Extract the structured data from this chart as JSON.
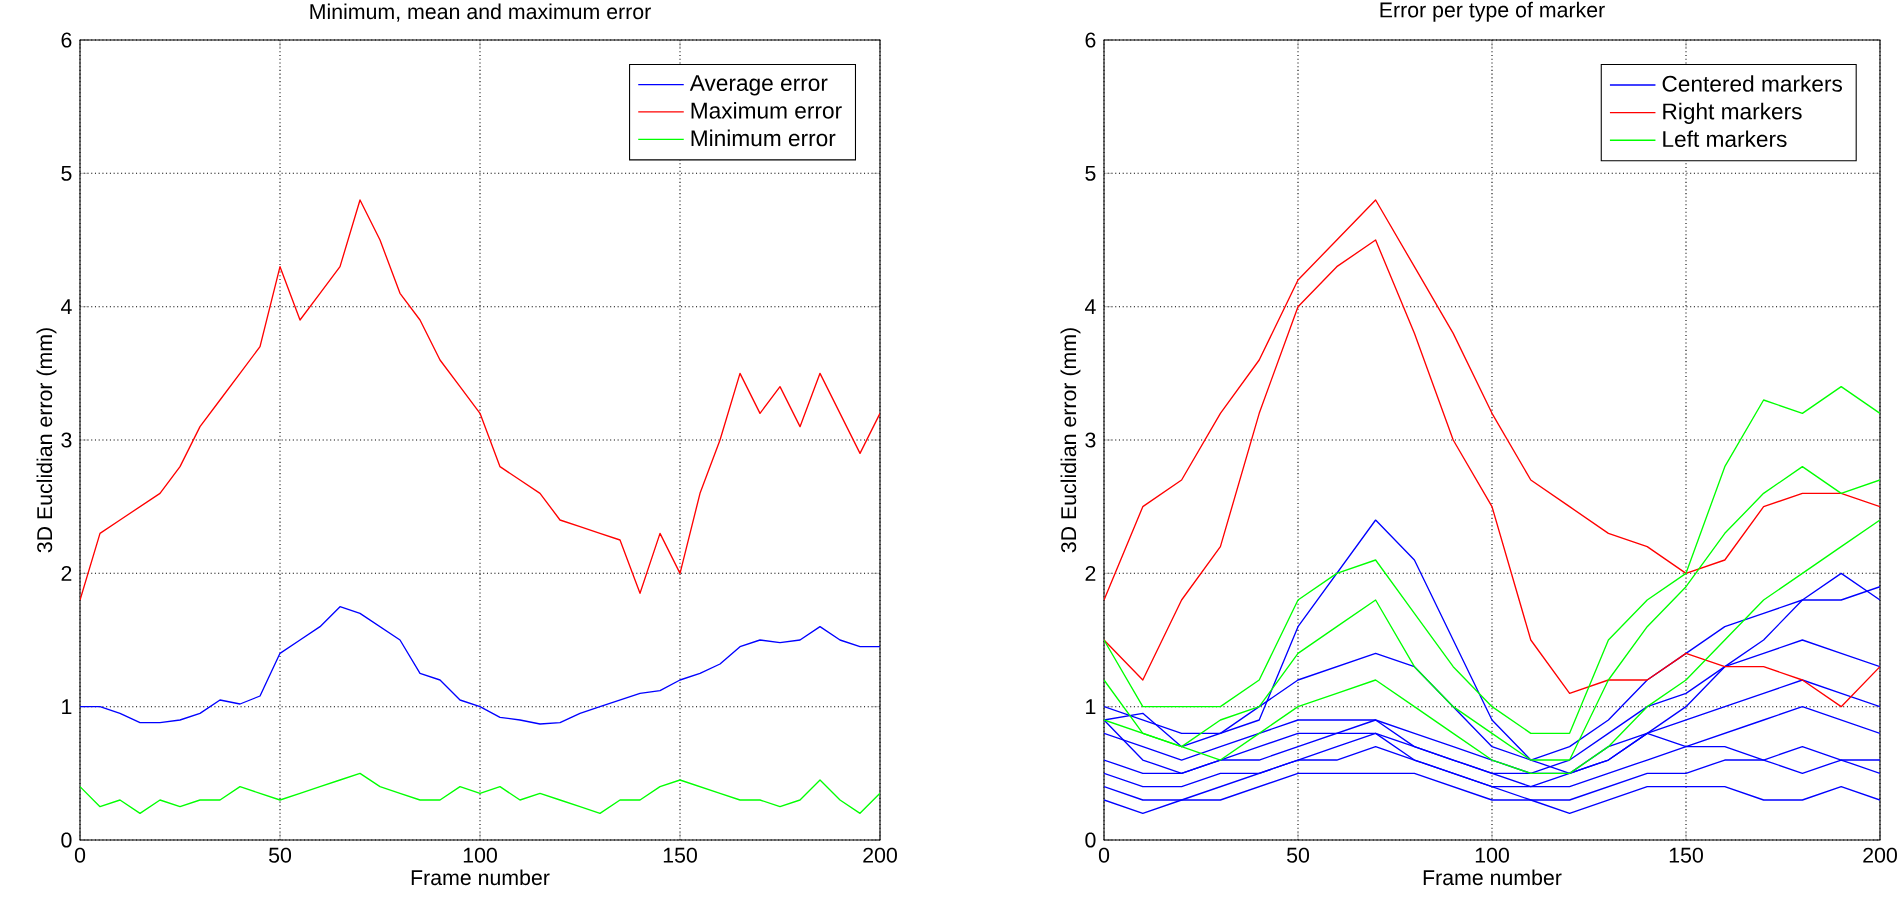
{
  "chart_data": [
    {
      "type": "line",
      "title": "Minimum, mean and maximum error",
      "xlabel": "Frame number",
      "ylabel": "3D Euclidian error (mm)",
      "xlim": [
        0,
        200
      ],
      "ylim": [
        0,
        6
      ],
      "xticks": [
        0,
        50,
        100,
        150,
        200
      ],
      "yticks": [
        0,
        1,
        2,
        3,
        4,
        5,
        6
      ],
      "grid": true,
      "legend": "top right",
      "x": [
        0,
        5,
        10,
        15,
        20,
        25,
        30,
        35,
        40,
        45,
        50,
        55,
        60,
        65,
        70,
        75,
        80,
        85,
        90,
        95,
        100,
        105,
        110,
        115,
        120,
        125,
        130,
        135,
        140,
        145,
        150,
        155,
        160,
        165,
        170,
        175,
        180,
        185,
        190,
        195,
        200
      ],
      "series": [
        {
          "name": "Average error",
          "color": "#0000ff",
          "values": [
            1.0,
            1.0,
            0.95,
            0.88,
            0.88,
            0.9,
            0.95,
            1.05,
            1.02,
            1.08,
            1.4,
            1.5,
            1.6,
            1.75,
            1.7,
            1.6,
            1.5,
            1.25,
            1.2,
            1.05,
            1.0,
            0.92,
            0.9,
            0.87,
            0.88,
            0.95,
            1.0,
            1.05,
            1.1,
            1.12,
            1.2,
            1.25,
            1.32,
            1.45,
            1.5,
            1.48,
            1.5,
            1.6,
            1.5,
            1.45,
            1.45
          ]
        },
        {
          "name": "Maximum error",
          "color": "#ff0000",
          "values": [
            1.8,
            2.3,
            2.4,
            2.5,
            2.6,
            2.8,
            3.1,
            3.3,
            3.5,
            3.7,
            4.3,
            3.9,
            4.1,
            4.3,
            4.8,
            4.5,
            4.1,
            3.9,
            3.6,
            3.4,
            3.2,
            2.8,
            2.7,
            2.6,
            2.4,
            2.35,
            2.3,
            2.25,
            1.85,
            2.3,
            2.0,
            2.6,
            3.0,
            3.5,
            3.2,
            3.4,
            3.1,
            3.5,
            3.2,
            2.9,
            3.2
          ]
        },
        {
          "name": "Minimum error",
          "color": "#00ff00",
          "values": [
            0.4,
            0.25,
            0.3,
            0.2,
            0.3,
            0.25,
            0.3,
            0.3,
            0.4,
            0.35,
            0.3,
            0.35,
            0.4,
            0.45,
            0.5,
            0.4,
            0.35,
            0.3,
            0.3,
            0.4,
            0.35,
            0.4,
            0.3,
            0.35,
            0.3,
            0.25,
            0.2,
            0.3,
            0.3,
            0.4,
            0.45,
            0.4,
            0.35,
            0.3,
            0.3,
            0.25,
            0.3,
            0.45,
            0.3,
            0.2,
            0.35
          ]
        }
      ]
    },
    {
      "type": "line",
      "title": "Error per type of marker",
      "xlabel": "Frame number",
      "ylabel": "3D Euclidian error (mm)",
      "xlim": [
        0,
        200
      ],
      "ylim": [
        0,
        6
      ],
      "xticks": [
        0,
        50,
        100,
        150,
        200
      ],
      "yticks": [
        0,
        1,
        2,
        3,
        4,
        5,
        6
      ],
      "grid": true,
      "legend": "top right",
      "x": [
        0,
        10,
        20,
        30,
        40,
        50,
        60,
        70,
        80,
        90,
        100,
        110,
        120,
        130,
        140,
        150,
        160,
        170,
        180,
        190,
        200
      ],
      "series": [
        {
          "name": "Centered markers",
          "color": "#0000ff",
          "values": [
            0.9,
            0.95,
            0.7,
            0.8,
            0.9,
            1.6,
            2.0,
            2.4,
            2.1,
            1.5,
            0.9,
            0.6,
            0.5,
            0.6,
            0.8,
            1.0,
            1.3,
            1.5,
            1.8,
            2.0,
            1.8
          ]
        },
        {
          "color": "#0000ff",
          "values": [
            1.0,
            0.9,
            0.8,
            0.8,
            1.0,
            1.2,
            1.3,
            1.4,
            1.3,
            1.0,
            0.7,
            0.6,
            0.7,
            0.9,
            1.2,
            1.4,
            1.6,
            1.7,
            1.8,
            1.8,
            1.9
          ]
        },
        {
          "color": "#0000ff",
          "values": [
            0.8,
            0.7,
            0.6,
            0.7,
            0.8,
            0.9,
            0.9,
            0.9,
            0.8,
            0.7,
            0.6,
            0.5,
            0.6,
            0.8,
            1.0,
            1.1,
            1.3,
            1.4,
            1.5,
            1.4,
            1.3
          ]
        },
        {
          "color": "#0000ff",
          "values": [
            0.6,
            0.5,
            0.5,
            0.6,
            0.7,
            0.8,
            0.8,
            0.8,
            0.7,
            0.6,
            0.5,
            0.4,
            0.5,
            0.7,
            0.8,
            0.9,
            1.0,
            1.1,
            1.2,
            1.1,
            1.0
          ]
        },
        {
          "color": "#0000ff",
          "values": [
            0.5,
            0.4,
            0.4,
            0.5,
            0.5,
            0.6,
            0.7,
            0.8,
            0.6,
            0.5,
            0.4,
            0.4,
            0.4,
            0.5,
            0.6,
            0.7,
            0.8,
            0.9,
            1.0,
            0.9,
            0.8
          ]
        },
        {
          "color": "#0000ff",
          "values": [
            0.4,
            0.3,
            0.3,
            0.4,
            0.5,
            0.6,
            0.6,
            0.7,
            0.6,
            0.5,
            0.4,
            0.3,
            0.3,
            0.4,
            0.5,
            0.5,
            0.6,
            0.6,
            0.7,
            0.6,
            0.6
          ]
        },
        {
          "color": "#0000ff",
          "values": [
            0.3,
            0.2,
            0.3,
            0.3,
            0.4,
            0.5,
            0.5,
            0.5,
            0.5,
            0.4,
            0.3,
            0.3,
            0.2,
            0.3,
            0.4,
            0.4,
            0.4,
            0.3,
            0.3,
            0.4,
            0.3
          ]
        },
        {
          "color": "#0000ff",
          "values": [
            0.9,
            0.6,
            0.5,
            0.6,
            0.6,
            0.7,
            0.8,
            0.9,
            0.7,
            0.6,
            0.5,
            0.5,
            0.5,
            0.6,
            0.8,
            0.7,
            0.7,
            0.6,
            0.5,
            0.6,
            0.5
          ]
        },
        {
          "name": "Right markers",
          "color": "#ff0000",
          "values": [
            1.8,
            2.5,
            2.7,
            3.2,
            3.6,
            4.2,
            4.5,
            4.8,
            4.3,
            3.8,
            3.2,
            2.7,
            2.5,
            2.3,
            2.2,
            2.0,
            2.1,
            2.5,
            2.6,
            2.6,
            2.5
          ]
        },
        {
          "color": "#ff0000",
          "values": [
            1.5,
            1.2,
            1.8,
            2.2,
            3.2,
            4.0,
            4.3,
            4.5,
            3.8,
            3.0,
            2.5,
            1.5,
            1.1,
            1.2,
            1.2,
            1.4,
            1.3,
            1.3,
            1.2,
            1.0,
            1.3
          ]
        },
        {
          "name": "Left markers",
          "color": "#00ff00",
          "values": [
            1.5,
            1.0,
            1.0,
            1.0,
            1.2,
            1.8,
            2.0,
            2.1,
            1.7,
            1.3,
            1.0,
            0.8,
            0.8,
            1.5,
            1.8,
            2.0,
            2.8,
            3.3,
            3.2,
            3.4,
            3.2
          ]
        },
        {
          "color": "#00ff00",
          "values": [
            1.2,
            0.8,
            0.7,
            0.9,
            1.0,
            1.4,
            1.6,
            1.8,
            1.3,
            1.0,
            0.8,
            0.6,
            0.6,
            1.2,
            1.6,
            1.9,
            2.3,
            2.6,
            2.8,
            2.6,
            2.7
          ]
        },
        {
          "color": "#00ff00",
          "values": [
            0.9,
            0.8,
            0.7,
            0.6,
            0.8,
            1.0,
            1.1,
            1.2,
            1.0,
            0.8,
            0.6,
            0.5,
            0.5,
            0.7,
            1.0,
            1.2,
            1.5,
            1.8,
            2.0,
            2.2,
            2.4
          ]
        }
      ]
    }
  ]
}
